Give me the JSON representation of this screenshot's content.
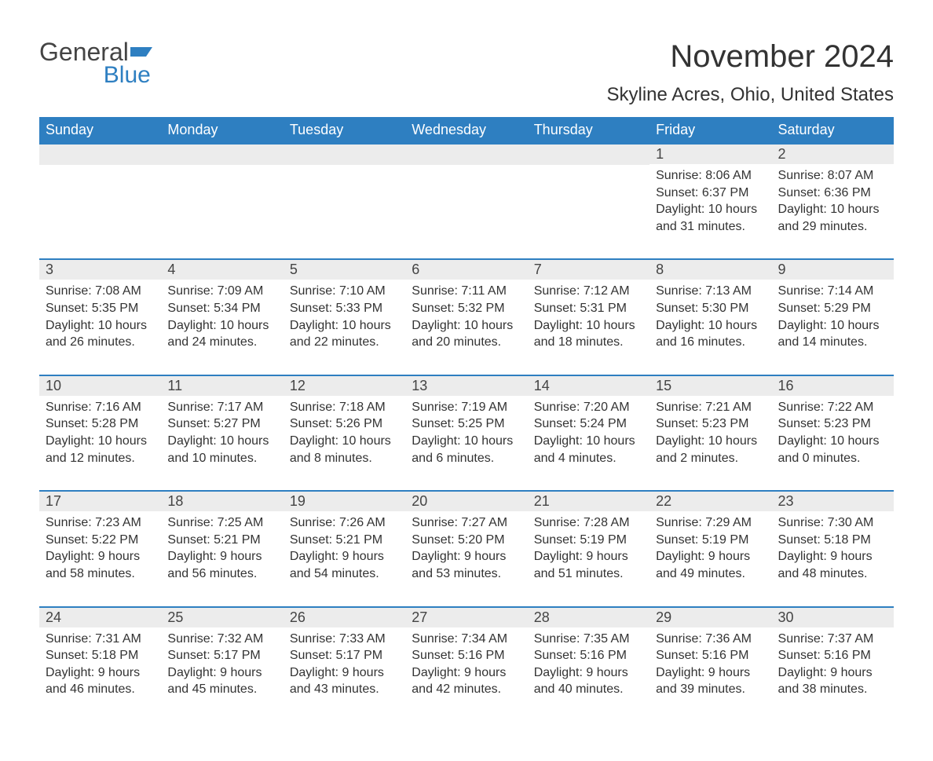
{
  "logo": {
    "text1": "General",
    "text2": "Blue"
  },
  "title": "November 2024",
  "location": "Skyline Acres, Ohio, United States",
  "colors": {
    "header_bg": "#2e7fc1",
    "header_text": "#ffffff",
    "daynum_bg": "#ececec",
    "row_border": "#2e7fc1",
    "body_text": "#333333",
    "page_bg": "#ffffff"
  },
  "fonts": {
    "title_size": 40,
    "location_size": 24,
    "header_size": 18,
    "daynum_size": 18,
    "content_size": 16
  },
  "day_headers": [
    "Sunday",
    "Monday",
    "Tuesday",
    "Wednesday",
    "Thursday",
    "Friday",
    "Saturday"
  ],
  "weeks": [
    [
      {
        "n": "",
        "sunrise": "",
        "sunset": "",
        "daylight": ""
      },
      {
        "n": "",
        "sunrise": "",
        "sunset": "",
        "daylight": ""
      },
      {
        "n": "",
        "sunrise": "",
        "sunset": "",
        "daylight": ""
      },
      {
        "n": "",
        "sunrise": "",
        "sunset": "",
        "daylight": ""
      },
      {
        "n": "",
        "sunrise": "",
        "sunset": "",
        "daylight": ""
      },
      {
        "n": "1",
        "sunrise": "Sunrise: 8:06 AM",
        "sunset": "Sunset: 6:37 PM",
        "daylight": "Daylight: 10 hours and 31 minutes."
      },
      {
        "n": "2",
        "sunrise": "Sunrise: 8:07 AM",
        "sunset": "Sunset: 6:36 PM",
        "daylight": "Daylight: 10 hours and 29 minutes."
      }
    ],
    [
      {
        "n": "3",
        "sunrise": "Sunrise: 7:08 AM",
        "sunset": "Sunset: 5:35 PM",
        "daylight": "Daylight: 10 hours and 26 minutes."
      },
      {
        "n": "4",
        "sunrise": "Sunrise: 7:09 AM",
        "sunset": "Sunset: 5:34 PM",
        "daylight": "Daylight: 10 hours and 24 minutes."
      },
      {
        "n": "5",
        "sunrise": "Sunrise: 7:10 AM",
        "sunset": "Sunset: 5:33 PM",
        "daylight": "Daylight: 10 hours and 22 minutes."
      },
      {
        "n": "6",
        "sunrise": "Sunrise: 7:11 AM",
        "sunset": "Sunset: 5:32 PM",
        "daylight": "Daylight: 10 hours and 20 minutes."
      },
      {
        "n": "7",
        "sunrise": "Sunrise: 7:12 AM",
        "sunset": "Sunset: 5:31 PM",
        "daylight": "Daylight: 10 hours and 18 minutes."
      },
      {
        "n": "8",
        "sunrise": "Sunrise: 7:13 AM",
        "sunset": "Sunset: 5:30 PM",
        "daylight": "Daylight: 10 hours and 16 minutes."
      },
      {
        "n": "9",
        "sunrise": "Sunrise: 7:14 AM",
        "sunset": "Sunset: 5:29 PM",
        "daylight": "Daylight: 10 hours and 14 minutes."
      }
    ],
    [
      {
        "n": "10",
        "sunrise": "Sunrise: 7:16 AM",
        "sunset": "Sunset: 5:28 PM",
        "daylight": "Daylight: 10 hours and 12 minutes."
      },
      {
        "n": "11",
        "sunrise": "Sunrise: 7:17 AM",
        "sunset": "Sunset: 5:27 PM",
        "daylight": "Daylight: 10 hours and 10 minutes."
      },
      {
        "n": "12",
        "sunrise": "Sunrise: 7:18 AM",
        "sunset": "Sunset: 5:26 PM",
        "daylight": "Daylight: 10 hours and 8 minutes."
      },
      {
        "n": "13",
        "sunrise": "Sunrise: 7:19 AM",
        "sunset": "Sunset: 5:25 PM",
        "daylight": "Daylight: 10 hours and 6 minutes."
      },
      {
        "n": "14",
        "sunrise": "Sunrise: 7:20 AM",
        "sunset": "Sunset: 5:24 PM",
        "daylight": "Daylight: 10 hours and 4 minutes."
      },
      {
        "n": "15",
        "sunrise": "Sunrise: 7:21 AM",
        "sunset": "Sunset: 5:23 PM",
        "daylight": "Daylight: 10 hours and 2 minutes."
      },
      {
        "n": "16",
        "sunrise": "Sunrise: 7:22 AM",
        "sunset": "Sunset: 5:23 PM",
        "daylight": "Daylight: 10 hours and 0 minutes."
      }
    ],
    [
      {
        "n": "17",
        "sunrise": "Sunrise: 7:23 AM",
        "sunset": "Sunset: 5:22 PM",
        "daylight": "Daylight: 9 hours and 58 minutes."
      },
      {
        "n": "18",
        "sunrise": "Sunrise: 7:25 AM",
        "sunset": "Sunset: 5:21 PM",
        "daylight": "Daylight: 9 hours and 56 minutes."
      },
      {
        "n": "19",
        "sunrise": "Sunrise: 7:26 AM",
        "sunset": "Sunset: 5:21 PM",
        "daylight": "Daylight: 9 hours and 54 minutes."
      },
      {
        "n": "20",
        "sunrise": "Sunrise: 7:27 AM",
        "sunset": "Sunset: 5:20 PM",
        "daylight": "Daylight: 9 hours and 53 minutes."
      },
      {
        "n": "21",
        "sunrise": "Sunrise: 7:28 AM",
        "sunset": "Sunset: 5:19 PM",
        "daylight": "Daylight: 9 hours and 51 minutes."
      },
      {
        "n": "22",
        "sunrise": "Sunrise: 7:29 AM",
        "sunset": "Sunset: 5:19 PM",
        "daylight": "Daylight: 9 hours and 49 minutes."
      },
      {
        "n": "23",
        "sunrise": "Sunrise: 7:30 AM",
        "sunset": "Sunset: 5:18 PM",
        "daylight": "Daylight: 9 hours and 48 minutes."
      }
    ],
    [
      {
        "n": "24",
        "sunrise": "Sunrise: 7:31 AM",
        "sunset": "Sunset: 5:18 PM",
        "daylight": "Daylight: 9 hours and 46 minutes."
      },
      {
        "n": "25",
        "sunrise": "Sunrise: 7:32 AM",
        "sunset": "Sunset: 5:17 PM",
        "daylight": "Daylight: 9 hours and 45 minutes."
      },
      {
        "n": "26",
        "sunrise": "Sunrise: 7:33 AM",
        "sunset": "Sunset: 5:17 PM",
        "daylight": "Daylight: 9 hours and 43 minutes."
      },
      {
        "n": "27",
        "sunrise": "Sunrise: 7:34 AM",
        "sunset": "Sunset: 5:16 PM",
        "daylight": "Daylight: 9 hours and 42 minutes."
      },
      {
        "n": "28",
        "sunrise": "Sunrise: 7:35 AM",
        "sunset": "Sunset: 5:16 PM",
        "daylight": "Daylight: 9 hours and 40 minutes."
      },
      {
        "n": "29",
        "sunrise": "Sunrise: 7:36 AM",
        "sunset": "Sunset: 5:16 PM",
        "daylight": "Daylight: 9 hours and 39 minutes."
      },
      {
        "n": "30",
        "sunrise": "Sunrise: 7:37 AM",
        "sunset": "Sunset: 5:16 PM",
        "daylight": "Daylight: 9 hours and 38 minutes."
      }
    ]
  ]
}
